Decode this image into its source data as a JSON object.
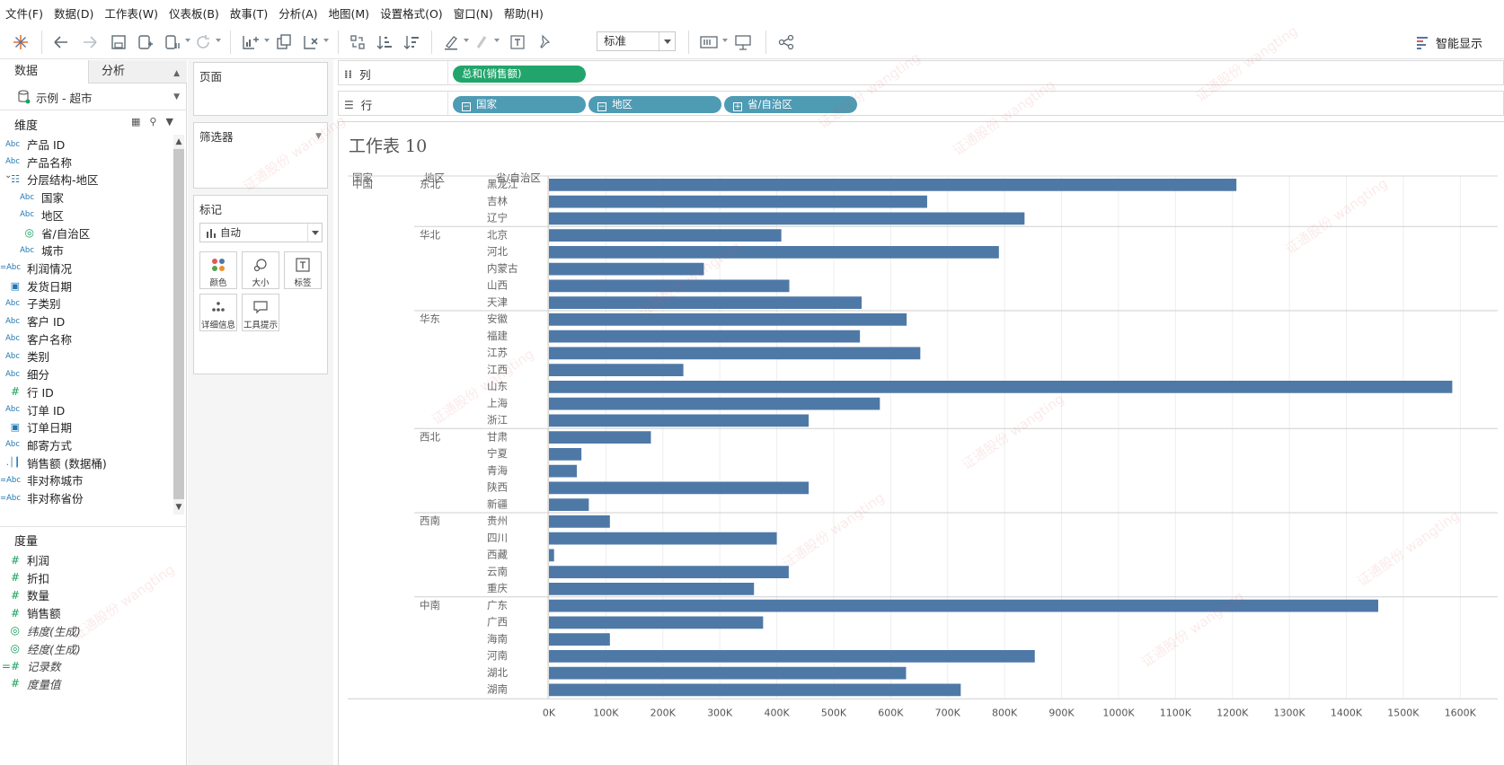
{
  "menu": [
    "文件(F)",
    "数据(D)",
    "工作表(W)",
    "仪表板(B)",
    "故事(T)",
    "分析(A)",
    "地图(M)",
    "设置格式(O)",
    "窗口(N)",
    "帮助(H)"
  ],
  "toolbar": {
    "fit_value": "标准",
    "show_me_label": "智能显示"
  },
  "data_pane": {
    "tab_data": "数据",
    "tab_analysis": "分析",
    "datasource": "示例 - 超市",
    "dimensions_header": "维度",
    "dimensions": [
      {
        "type": "Abc",
        "label": "产品 ID",
        "indent": 0
      },
      {
        "type": "Abc",
        "label": "产品名称",
        "indent": 0
      },
      {
        "type": "hier",
        "label": "分层结构-地区",
        "indent": 0
      },
      {
        "type": "Abc",
        "label": "国家",
        "indent": 1
      },
      {
        "type": "Abc",
        "label": "地区",
        "indent": 1
      },
      {
        "type": "geo",
        "label": "省/自治区",
        "indent": 1
      },
      {
        "type": "Abc",
        "label": "城市",
        "indent": 1
      },
      {
        "type": "=Abc",
        "label": "利润情况",
        "indent": 0
      },
      {
        "type": "date",
        "label": "发货日期",
        "indent": 0
      },
      {
        "type": "Abc",
        "label": "子类别",
        "indent": 0
      },
      {
        "type": "Abc",
        "label": "客户 ID",
        "indent": 0
      },
      {
        "type": "Abc",
        "label": "客户名称",
        "indent": 0
      },
      {
        "type": "Abc",
        "label": "类别",
        "indent": 0
      },
      {
        "type": "Abc",
        "label": "细分",
        "indent": 0
      },
      {
        "type": "num",
        "label": "行 ID",
        "indent": 0
      },
      {
        "type": "Abc",
        "label": "订单 ID",
        "indent": 0
      },
      {
        "type": "date",
        "label": "订单日期",
        "indent": 0
      },
      {
        "type": "Abc",
        "label": "邮寄方式",
        "indent": 0
      },
      {
        "type": "bin",
        "label": "销售额 (数据桶)",
        "indent": 0
      },
      {
        "type": "=Abc",
        "label": "非对称城市",
        "indent": 0
      },
      {
        "type": "=Abc",
        "label": "非对称省份",
        "indent": 0
      }
    ],
    "measures_header": "度量",
    "measures": [
      {
        "type": "num",
        "label": "利润",
        "italic": false
      },
      {
        "type": "num",
        "label": "折扣",
        "italic": false
      },
      {
        "type": "num",
        "label": "数量",
        "italic": false
      },
      {
        "type": "num",
        "label": "销售额",
        "italic": false
      },
      {
        "type": "geo",
        "label": "纬度(生成)",
        "italic": true
      },
      {
        "type": "geo",
        "label": "经度(生成)",
        "italic": true
      },
      {
        "type": "=num",
        "label": "记录数",
        "italic": true
      },
      {
        "type": "num",
        "label": "度量值",
        "italic": true
      }
    ]
  },
  "cards": {
    "pages": "页面",
    "filters": "筛选器",
    "marks": "标记",
    "marks_type": "自动",
    "mark_buttons": [
      "颜色",
      "大小",
      "标签",
      "详细信息",
      "工具提示"
    ]
  },
  "shelves": {
    "columns_label": "列",
    "rows_label": "行",
    "column_pills": [
      "总和(销售额)"
    ],
    "row_pills": [
      "国家",
      "地区",
      "省/自治区"
    ]
  },
  "view": {
    "sheet_title": "工作表 10",
    "headers": [
      "国家",
      "地区",
      "省/自治区"
    ]
  },
  "chart_data": {
    "type": "bar",
    "orientation": "horizontal",
    "xlabel": "",
    "xlim": [
      0,
      1650000
    ],
    "x_ticks": [
      {
        "value": 0,
        "label": "0K"
      },
      {
        "value": 100000,
        "label": "100K"
      },
      {
        "value": 200000,
        "label": "200K"
      },
      {
        "value": 300000,
        "label": "300K"
      },
      {
        "value": 400000,
        "label": "400K"
      },
      {
        "value": 500000,
        "label": "500K"
      },
      {
        "value": 600000,
        "label": "600K"
      },
      {
        "value": 700000,
        "label": "700K"
      },
      {
        "value": 800000,
        "label": "800K"
      },
      {
        "value": 900000,
        "label": "900K"
      },
      {
        "value": 1000000,
        "label": "1000K"
      },
      {
        "value": 1100000,
        "label": "1100K"
      },
      {
        "value": 1200000,
        "label": "1200K"
      },
      {
        "value": 1300000,
        "label": "1300K"
      },
      {
        "value": 1400000,
        "label": "1400K"
      },
      {
        "value": 1500000,
        "label": "1500K"
      },
      {
        "value": 1600000,
        "label": "1600K"
      }
    ],
    "bar_color": "#4e79a7",
    "country": "中国",
    "groups": [
      {
        "region": "东北",
        "rows": [
          {
            "province": "黑龙江",
            "value": 1207000
          },
          {
            "province": "吉林",
            "value": 664000
          },
          {
            "province": "辽宁",
            "value": 835000
          }
        ]
      },
      {
        "region": "华北",
        "rows": [
          {
            "province": "北京",
            "value": 408000
          },
          {
            "province": "河北",
            "value": 790000
          },
          {
            "province": "内蒙古",
            "value": 272000
          },
          {
            "province": "山西",
            "value": 422000
          },
          {
            "province": "天津",
            "value": 549000
          }
        ]
      },
      {
        "region": "华东",
        "rows": [
          {
            "province": "安徽",
            "value": 628000
          },
          {
            "province": "福建",
            "value": 546000
          },
          {
            "province": "江苏",
            "value": 652000
          },
          {
            "province": "江西",
            "value": 236000
          },
          {
            "province": "山东",
            "value": 1586000
          },
          {
            "province": "上海",
            "value": 581000
          },
          {
            "province": "浙江",
            "value": 456000
          }
        ]
      },
      {
        "region": "西北",
        "rows": [
          {
            "province": "甘肃",
            "value": 179000
          },
          {
            "province": "宁夏",
            "value": 57000
          },
          {
            "province": "青海",
            "value": 49000
          },
          {
            "province": "陕西",
            "value": 456000
          },
          {
            "province": "新疆",
            "value": 70000
          }
        ]
      },
      {
        "region": "西南",
        "rows": [
          {
            "province": "贵州",
            "value": 107000
          },
          {
            "province": "四川",
            "value": 400000
          },
          {
            "province": "西藏",
            "value": 9000
          },
          {
            "province": "云南",
            "value": 421000
          },
          {
            "province": "重庆",
            "value": 360000
          }
        ]
      },
      {
        "region": "中南",
        "rows": [
          {
            "province": "广东",
            "value": 1456000
          },
          {
            "province": "广西",
            "value": 376000
          },
          {
            "province": "海南",
            "value": 107000
          },
          {
            "province": "河南",
            "value": 853000
          },
          {
            "province": "湖北",
            "value": 627000
          },
          {
            "province": "湖南",
            "value": 723000
          }
        ]
      }
    ]
  },
  "watermark": "证通股份 wangting"
}
